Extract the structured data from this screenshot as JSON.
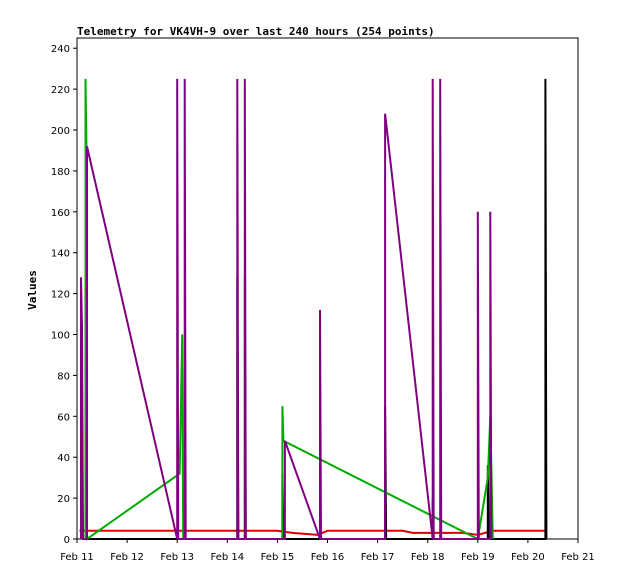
{
  "chart_data": {
    "type": "line",
    "title": "Telemetry for VK4VH-9 over last 240 hours (254 points)",
    "xlabel": "",
    "ylabel": "Values",
    "x_axis_type": "date",
    "xlim": [
      "Feb 11",
      "Feb 21"
    ],
    "ylim": [
      0,
      245
    ],
    "y_ticks": [
      0,
      20,
      40,
      60,
      80,
      100,
      120,
      140,
      160,
      180,
      200,
      220,
      240
    ],
    "x_ticks": [
      "Feb 11",
      "Feb 12",
      "Feb 13",
      "Feb 14",
      "Feb 15",
      "Feb 16",
      "Feb 17",
      "Feb 18",
      "Feb 19",
      "Feb 20",
      "Feb 21"
    ],
    "grid": false,
    "legend": "none",
    "colors": {
      "axis": "#000000",
      "series_red": "#dd0000",
      "series_black": "#000000",
      "series_green": "#00aa00",
      "series_purple": "#800080"
    },
    "series": [
      {
        "color": "#dd0000",
        "points": [
          [
            11.05,
            4
          ],
          [
            12.0,
            4
          ],
          [
            13.0,
            4
          ],
          [
            14.0,
            4
          ],
          [
            15.0,
            4
          ],
          [
            15.3,
            3
          ],
          [
            15.8,
            2
          ],
          [
            16.0,
            4
          ],
          [
            17.0,
            4
          ],
          [
            17.5,
            4
          ],
          [
            17.7,
            3
          ],
          [
            18.1,
            3
          ],
          [
            18.7,
            3
          ],
          [
            19.0,
            2
          ],
          [
            19.3,
            4
          ],
          [
            20.0,
            4
          ],
          [
            20.35,
            4
          ]
        ]
      },
      {
        "color": "#000000",
        "points": [
          [
            11.1,
            0
          ],
          [
            11.1,
            36
          ],
          [
            11.12,
            0
          ],
          [
            11.16,
            0
          ],
          [
            13.05,
            0
          ],
          [
            13.1,
            0
          ],
          [
            14.2,
            0
          ],
          [
            14.2,
            128
          ],
          [
            14.22,
            0
          ],
          [
            14.4,
            0
          ],
          [
            15.1,
            0
          ],
          [
            15.1,
            32
          ],
          [
            15.12,
            0
          ],
          [
            17.15,
            0
          ],
          [
            17.15,
            65
          ],
          [
            17.17,
            0
          ],
          [
            18.1,
            0
          ],
          [
            18.1,
            20
          ],
          [
            18.12,
            0
          ],
          [
            19.2,
            0
          ],
          [
            19.2,
            36
          ],
          [
            19.22,
            0
          ],
          [
            20.35,
            0
          ],
          [
            20.35,
            225
          ],
          [
            20.37,
            0
          ]
        ]
      },
      {
        "color": "#00aa00",
        "points": [
          [
            11.17,
            0
          ],
          [
            11.17,
            225
          ],
          [
            11.19,
            190
          ],
          [
            11.2,
            0
          ],
          [
            13.05,
            32
          ],
          [
            13.1,
            100
          ],
          [
            13.12,
            0
          ],
          [
            14.35,
            0
          ],
          [
            14.35,
            128
          ],
          [
            14.37,
            0
          ],
          [
            15.1,
            0
          ],
          [
            15.1,
            65
          ],
          [
            15.12,
            48
          ],
          [
            19.0,
            0
          ],
          [
            19.2,
            30
          ],
          [
            19.25,
            60
          ],
          [
            19.3,
            0
          ]
        ]
      },
      {
        "color": "#800080",
        "points": [
          [
            11.08,
            0
          ],
          [
            11.08,
            128
          ],
          [
            11.1,
            104
          ],
          [
            11.12,
            0
          ],
          [
            11.2,
            0
          ],
          [
            11.2,
            192
          ],
          [
            13.0,
            0
          ],
          [
            13.0,
            225
          ],
          [
            13.02,
            0
          ],
          [
            13.15,
            0
          ],
          [
            13.15,
            225
          ],
          [
            13.17,
            0
          ],
          [
            14.2,
            0
          ],
          [
            14.2,
            225
          ],
          [
            14.22,
            0
          ],
          [
            14.35,
            0
          ],
          [
            14.35,
            225
          ],
          [
            14.37,
            0
          ],
          [
            15.15,
            0
          ],
          [
            15.15,
            48
          ],
          [
            15.85,
            0
          ],
          [
            15.85,
            112
          ],
          [
            15.87,
            0
          ],
          [
            17.15,
            0
          ],
          [
            17.15,
            208
          ],
          [
            18.1,
            0
          ],
          [
            18.1,
            225
          ],
          [
            18.12,
            0
          ],
          [
            18.25,
            0
          ],
          [
            18.25,
            225
          ],
          [
            18.27,
            0
          ],
          [
            19.0,
            0
          ],
          [
            19.0,
            160
          ],
          [
            19.02,
            0
          ],
          [
            19.25,
            0
          ],
          [
            19.25,
            160
          ],
          [
            19.27,
            0
          ]
        ]
      }
    ]
  }
}
